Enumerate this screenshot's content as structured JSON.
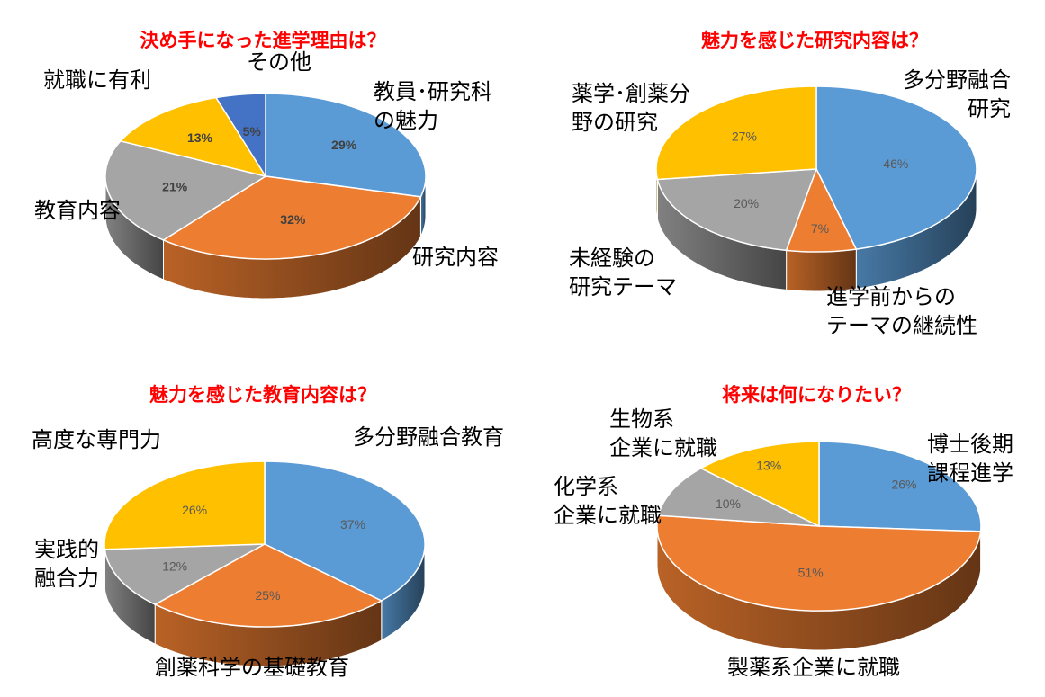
{
  "colors": {
    "title": "#ff0000",
    "blue": "#5b9bd5",
    "orange": "#ed7d31",
    "gray": "#a5a5a5",
    "yellow": "#ffc000",
    "darkblue": "#4472c4"
  },
  "chart_data": [
    {
      "type": "pie",
      "style": "3d",
      "title": "決め手になった進学理由は？",
      "slices": [
        {
          "label": "教員･研究科\nの魅力",
          "value": 29,
          "value_label": "29%",
          "color": "#5b9bd5"
        },
        {
          "label": "研究内容",
          "value": 32,
          "value_label": "32%",
          "color": "#ed7d31"
        },
        {
          "label": "教育内容",
          "value": 21,
          "value_label": "21%",
          "color": "#a5a5a5"
        },
        {
          "label": "就職に有利",
          "value": 13,
          "value_label": "13%",
          "color": "#ffc000"
        },
        {
          "label": "その他",
          "value": 5,
          "value_label": "5%",
          "color": "#4472c4"
        }
      ]
    },
    {
      "type": "pie",
      "style": "3d",
      "title": "魅力を感じた研究内容は？",
      "slices": [
        {
          "label": "多分野融合\n研究",
          "value": 46,
          "value_label": "46%",
          "color": "#5b9bd5"
        },
        {
          "label": "進学前からの\nテーマの継続性",
          "value": 7,
          "value_label": "7%",
          "color": "#ed7d31"
        },
        {
          "label": "未経験の\n研究テーマ",
          "value": 20,
          "value_label": "20%",
          "color": "#a5a5a5"
        },
        {
          "label": "薬学･創薬分\n野の研究",
          "value": 27,
          "value_label": "27%",
          "color": "#ffc000"
        }
      ]
    },
    {
      "type": "pie",
      "style": "3d",
      "title": "魅力を感じた教育内容は？",
      "slices": [
        {
          "label": "多分野融合教育",
          "value": 37,
          "value_label": "37%",
          "color": "#5b9bd5"
        },
        {
          "label": "創薬科学の基礎教育",
          "value": 25,
          "value_label": "25%",
          "color": "#ed7d31"
        },
        {
          "label": "実践的\n融合力",
          "value": 12,
          "value_label": "12%",
          "color": "#a5a5a5"
        },
        {
          "label": "高度な専門力",
          "value": 26,
          "value_label": "26%",
          "color": "#ffc000"
        }
      ]
    },
    {
      "type": "pie",
      "style": "3d",
      "title": "将来は何になりたい？",
      "slices": [
        {
          "label": "博士後期\n課程進学",
          "value": 26,
          "value_label": "26%",
          "color": "#5b9bd5"
        },
        {
          "label": "製薬系企業に就職",
          "value": 51,
          "value_label": "51%",
          "color": "#ed7d31"
        },
        {
          "label": "化学系\n企業に就職",
          "value": 10,
          "value_label": "10%",
          "color": "#a5a5a5"
        },
        {
          "label": "生物系\n企業に就職",
          "value": 13,
          "value_label": "13%",
          "color": "#ffc000"
        }
      ]
    }
  ]
}
